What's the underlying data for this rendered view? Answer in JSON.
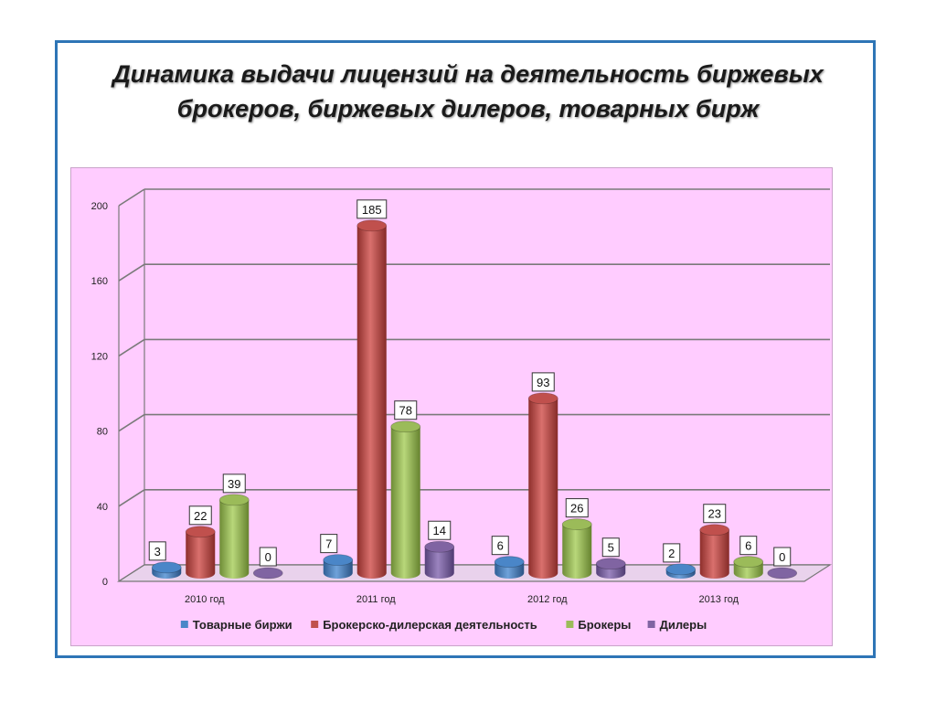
{
  "slide": {
    "title_line1": "Динамика выдачи лицензий на деятельность биржевых",
    "title_line2": "брокеров, биржевых дилеров, товарных бирж"
  },
  "chart_data": {
    "type": "bar",
    "title": "",
    "xlabel": "",
    "ylabel": "",
    "categories": [
      "2010 год",
      "2011 год",
      "2012 год",
      "2013 год"
    ],
    "yticks": [
      0,
      40,
      80,
      120,
      160,
      200
    ],
    "ylim": [
      0,
      200
    ],
    "grid": true,
    "legend_position": "bottom",
    "series": [
      {
        "name": "Товарные биржи",
        "values": [
          3,
          7,
          6,
          2
        ],
        "color": "#4a86c8"
      },
      {
        "name": "Брокерско-дилерская деятельность",
        "values": [
          22,
          185,
          93,
          23
        ],
        "color": "#c0504d"
      },
      {
        "name": "Брокеры",
        "values": [
          39,
          78,
          26,
          6
        ],
        "color": "#9bbb59"
      },
      {
        "name": "Дилеры",
        "values": [
          0,
          14,
          5,
          0
        ],
        "color": "#8064a2"
      }
    ]
  }
}
